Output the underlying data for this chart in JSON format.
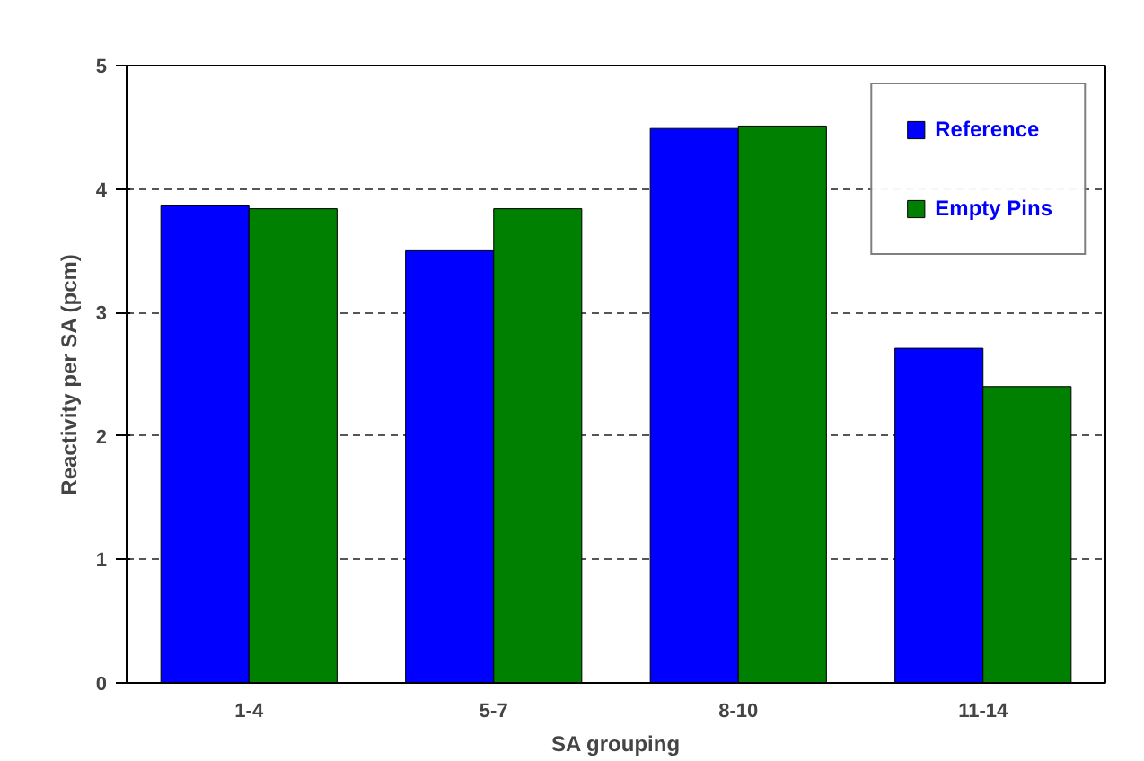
{
  "chart_data": {
    "type": "bar",
    "xlabel": "SA grouping",
    "ylabel": "Reactivity per SA (pcm)",
    "categories": [
      "1-4",
      "5-7",
      "8-10",
      "11-14"
    ],
    "series": [
      {
        "name": "Reference",
        "color": "#0000ff",
        "values": [
          3.87,
          3.5,
          4.49,
          2.71
        ]
      },
      {
        "name": "Empty Pins",
        "color": "#008000",
        "values": [
          3.84,
          3.84,
          4.51,
          2.4
        ]
      }
    ],
    "ylim": [
      0,
      5
    ],
    "yticks": [
      0,
      1,
      2,
      3,
      4,
      5
    ],
    "grid": "y",
    "legend": "top right"
  }
}
